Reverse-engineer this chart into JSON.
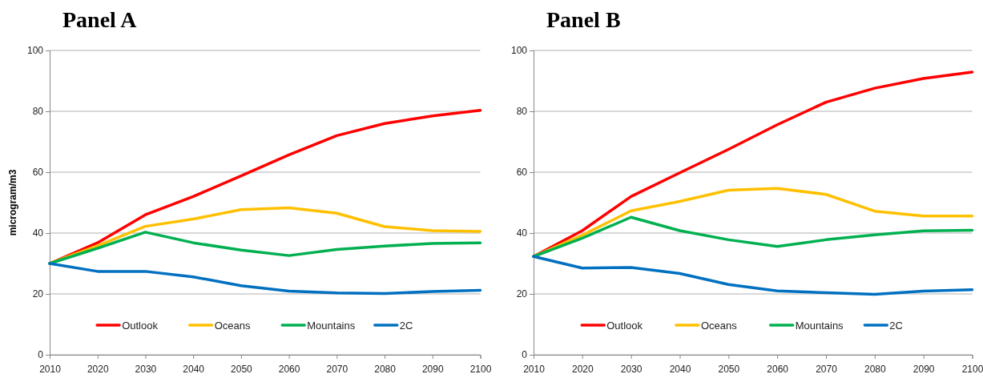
{
  "chart_data": [
    {
      "type": "line",
      "title": "Panel A",
      "ylabel": "microgram/m3",
      "x": [
        2010,
        2020,
        2030,
        2040,
        2050,
        2060,
        2070,
        2080,
        2090,
        2100
      ],
      "series": [
        {
          "name": "Outlook",
          "color": "#ff0000",
          "values": [
            30,
            36.8,
            46,
            52,
            58.8,
            65.7,
            72,
            76,
            78.5,
            80.3
          ]
        },
        {
          "name": "Oceans",
          "color": "#ffc000",
          "values": [
            30,
            35.8,
            42.2,
            44.6,
            47.7,
            48.3,
            46.5,
            42.1,
            40.8,
            40.5
          ]
        },
        {
          "name": "Mountains",
          "color": "#00b050",
          "values": [
            30,
            35,
            40.3,
            36.8,
            34.4,
            32.6,
            34.6,
            35.7,
            36.6,
            36.8
          ]
        },
        {
          "name": "2C",
          "color": "#0070c0",
          "values": [
            30,
            27.4,
            27.4,
            25.6,
            22.7,
            20.9,
            20.3,
            20.1,
            20.8,
            21.2
          ]
        }
      ],
      "xlim": [
        2010,
        2100
      ],
      "xticks": [
        2010,
        2020,
        2030,
        2040,
        2050,
        2060,
        2070,
        2080,
        2090,
        2100
      ],
      "ylim": [
        0,
        100
      ],
      "yticks": [
        0,
        20,
        40,
        60,
        80,
        100
      ],
      "grid": "y",
      "legend": "bottom",
      "marker": "none",
      "line_style": "solid"
    },
    {
      "type": "line",
      "title": "Panel B",
      "x": [
        2010,
        2020,
        2030,
        2040,
        2050,
        2060,
        2070,
        2080,
        2090,
        2100
      ],
      "series": [
        {
          "name": "Outlook",
          "color": "#ff0000",
          "values": [
            32.3,
            40.8,
            52,
            59.8,
            67.5,
            75.6,
            83,
            87.6,
            90.8,
            92.9
          ]
        },
        {
          "name": "Oceans",
          "color": "#ffc000",
          "values": [
            32.3,
            39.3,
            47.3,
            50.4,
            54.1,
            54.7,
            52.7,
            47.2,
            45.6,
            45.6
          ]
        },
        {
          "name": "Mountains",
          "color": "#00b050",
          "values": [
            32.3,
            38.3,
            45.2,
            40.8,
            37.8,
            35.6,
            37.8,
            39.4,
            40.7,
            40.9
          ]
        },
        {
          "name": "2C",
          "color": "#0070c0",
          "values": [
            32.3,
            28.5,
            28.7,
            26.7,
            23.1,
            21,
            20.4,
            19.9,
            20.9,
            21.4
          ]
        }
      ],
      "xlim": [
        2010,
        2100
      ],
      "xticks": [
        2010,
        2020,
        2030,
        2040,
        2050,
        2060,
        2070,
        2080,
        2090,
        2100
      ],
      "ylim": [
        0,
        100
      ],
      "yticks": [
        0,
        20,
        40,
        60,
        80,
        100
      ],
      "grid": "y",
      "legend": "bottom",
      "marker": "none",
      "line_style": "solid"
    }
  ]
}
